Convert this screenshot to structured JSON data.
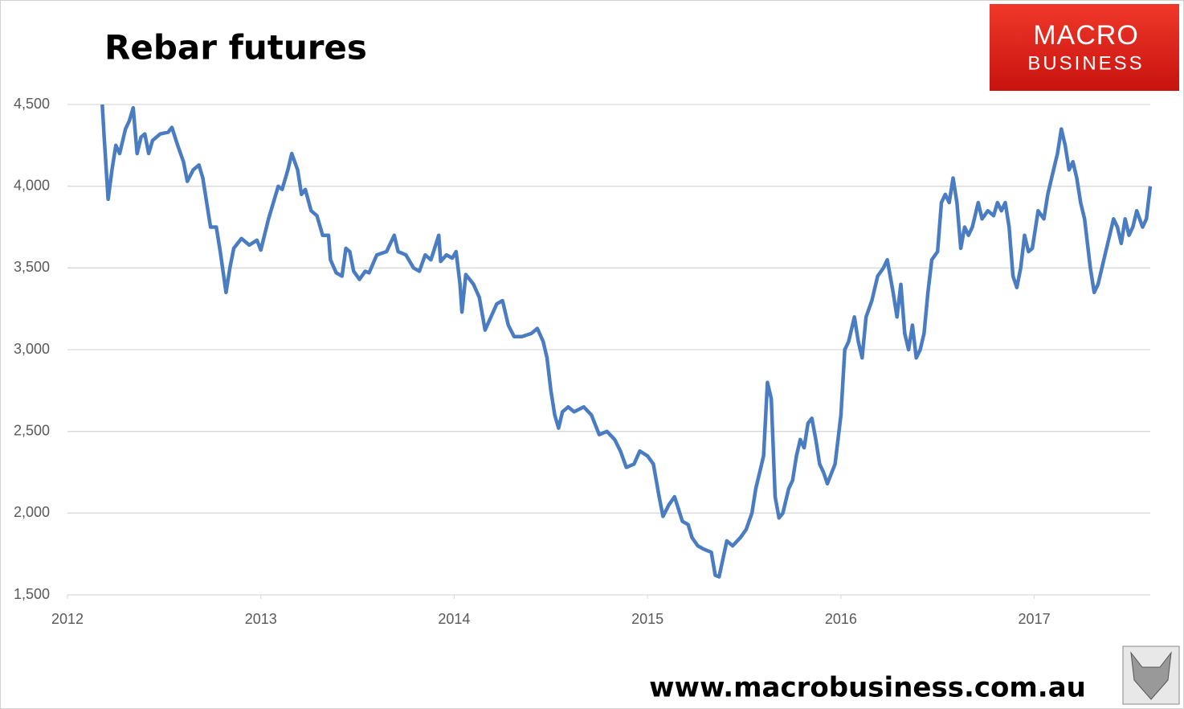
{
  "chart_data": {
    "type": "line",
    "title": "Rebar futures",
    "logo_text": [
      "MACRO",
      "BUSINESS"
    ],
    "source": "www.macrobusiness.com.au",
    "grid": true,
    "xlim": [
      2012,
      2017.6
    ],
    "xticks": [
      2012,
      2013,
      2014,
      2015,
      2016,
      2017
    ],
    "ylim": [
      1500,
      4500
    ],
    "yticks": [
      {
        "value": 1500,
        "label": "1,500"
      },
      {
        "value": 2000,
        "label": "2,000"
      },
      {
        "value": 2500,
        "label": "2,500"
      },
      {
        "value": 3000,
        "label": "3,000"
      },
      {
        "value": 3500,
        "label": "3,500"
      },
      {
        "value": 4000,
        "label": "4,000"
      },
      {
        "value": 4500,
        "label": "4,500"
      }
    ],
    "x": [
      2012.18,
      2012.19,
      2012.21,
      2012.23,
      2012.25,
      2012.27,
      2012.3,
      2012.32,
      2012.34,
      2012.36,
      2012.38,
      2012.4,
      2012.42,
      2012.44,
      2012.48,
      2012.52,
      2012.54,
      2012.57,
      2012.6,
      2012.62,
      2012.65,
      2012.68,
      2012.7,
      2012.72,
      2012.74,
      2012.77,
      2012.79,
      2012.82,
      2012.84,
      2012.86,
      2012.9,
      2012.94,
      2012.98,
      2013.0,
      2013.04,
      2013.09,
      2013.11,
      2013.14,
      2013.16,
      2013.19,
      2013.21,
      2013.23,
      2013.26,
      2013.29,
      2013.32,
      2013.35,
      2013.36,
      2013.39,
      2013.42,
      2013.44,
      2013.46,
      2013.48,
      2013.51,
      2013.54,
      2013.56,
      2013.6,
      2013.65,
      2013.69,
      2013.71,
      2013.75,
      2013.79,
      2013.82,
      2013.85,
      2013.88,
      2013.92,
      2013.93,
      2013.96,
      2013.99,
      2014.01,
      2014.03,
      2014.04,
      2014.06,
      2014.1,
      2014.13,
      2014.16,
      2014.19,
      2014.22,
      2014.25,
      2014.28,
      2014.31,
      2014.35,
      2014.4,
      2014.43,
      2014.46,
      2014.48,
      2014.5,
      2014.52,
      2014.54,
      2014.56,
      2014.59,
      2014.62,
      2014.67,
      2014.71,
      2014.75,
      2014.79,
      2014.83,
      2014.86,
      2014.89,
      2014.93,
      2014.96,
      2015.0,
      2015.03,
      2015.06,
      2015.08,
      2015.11,
      2015.14,
      2015.18,
      2015.21,
      2015.23,
      2015.26,
      2015.29,
      2015.33,
      2015.35,
      2015.37,
      2015.39,
      2015.41,
      2015.44,
      2015.48,
      2015.51,
      2015.54,
      2015.56,
      2015.58,
      2015.6,
      2015.62,
      2015.64,
      2015.66,
      2015.68,
      2015.7,
      2015.73,
      2015.75,
      2015.77,
      2015.79,
      2015.81,
      2015.83,
      2015.85,
      2015.87,
      2015.89,
      2015.91,
      2015.93,
      2015.97,
      2016.0,
      2016.02,
      2016.04,
      2016.07,
      2016.09,
      2016.11,
      2016.13,
      2016.16,
      2016.19,
      2016.22,
      2016.24,
      2016.27,
      2016.29,
      2016.31,
      2016.33,
      2016.35,
      2016.37,
      2016.39,
      2016.41,
      2016.43,
      2016.45,
      2016.47,
      2016.5,
      2016.52,
      2016.54,
      2016.56,
      2016.58,
      2016.6,
      2016.62,
      2016.64,
      2016.66,
      2016.68,
      2016.71,
      2016.73,
      2016.76,
      2016.79,
      2016.81,
      2016.83,
      2016.85,
      2016.87,
      2016.89,
      2016.91,
      2016.93,
      2016.95,
      2016.97,
      2016.99,
      2017.02,
      2017.05,
      2017.07,
      2017.1,
      2017.12,
      2017.14,
      2017.16,
      2017.18,
      2017.2,
      2017.22,
      2017.24,
      2017.26,
      2017.29,
      2017.31,
      2017.33,
      2017.35,
      2017.37,
      2017.39,
      2017.41,
      2017.43,
      2017.45,
      2017.47,
      2017.49,
      2017.51,
      2017.53,
      2017.56,
      2017.58,
      2017.6
    ],
    "series": [
      {
        "name": "Rebar futures",
        "color": "#4a7cc2",
        "values": [
          4500,
          4300,
          3920,
          4100,
          4250,
          4200,
          4350,
          4400,
          4480,
          4200,
          4300,
          4320,
          4200,
          4280,
          4320,
          4330,
          4360,
          4250,
          4150,
          4030,
          4100,
          4130,
          4050,
          3900,
          3750,
          3750,
          3600,
          3350,
          3500,
          3620,
          3680,
          3640,
          3670,
          3610,
          3800,
          4000,
          3980,
          4100,
          4200,
          4100,
          3950,
          3980,
          3850,
          3820,
          3700,
          3700,
          3550,
          3470,
          3450,
          3620,
          3600,
          3480,
          3430,
          3480,
          3470,
          3580,
          3600,
          3700,
          3600,
          3580,
          3500,
          3480,
          3580,
          3550,
          3700,
          3540,
          3580,
          3560,
          3600,
          3400,
          3230,
          3460,
          3400,
          3320,
          3120,
          3200,
          3280,
          3300,
          3150,
          3080,
          3080,
          3100,
          3130,
          3050,
          2950,
          2750,
          2600,
          2520,
          2620,
          2650,
          2620,
          2650,
          2600,
          2480,
          2500,
          2450,
          2380,
          2280,
          2300,
          2380,
          2350,
          2300,
          2100,
          1980,
          2050,
          2100,
          1950,
          1930,
          1850,
          1800,
          1780,
          1760,
          1620,
          1610,
          1720,
          1830,
          1800,
          1850,
          1900,
          2000,
          2150,
          2250,
          2350,
          2800,
          2700,
          2100,
          1970,
          2000,
          2150,
          2200,
          2350,
          2450,
          2400,
          2550,
          2580,
          2450,
          2300,
          2250,
          2180,
          2300,
          2600,
          3000,
          3050,
          3200,
          3050,
          2950,
          3200,
          3300,
          3450,
          3500,
          3550,
          3350,
          3200,
          3400,
          3100,
          3000,
          3150,
          2950,
          3000,
          3100,
          3350,
          3550,
          3600,
          3900,
          3950,
          3900,
          4050,
          3900,
          3620,
          3750,
          3700,
          3750,
          3900,
          3800,
          3850,
          3820,
          3900,
          3850,
          3900,
          3750,
          3450,
          3380,
          3500,
          3700,
          3600,
          3620,
          3850,
          3800,
          3950,
          4100,
          4200,
          4350,
          4250,
          4100,
          4150,
          4050,
          3900,
          3800,
          3500,
          3350,
          3400,
          3500,
          3600,
          3700,
          3800,
          3750,
          3650,
          3800,
          3700,
          3750,
          3850,
          3750,
          3800,
          4000
        ]
      }
    ]
  }
}
